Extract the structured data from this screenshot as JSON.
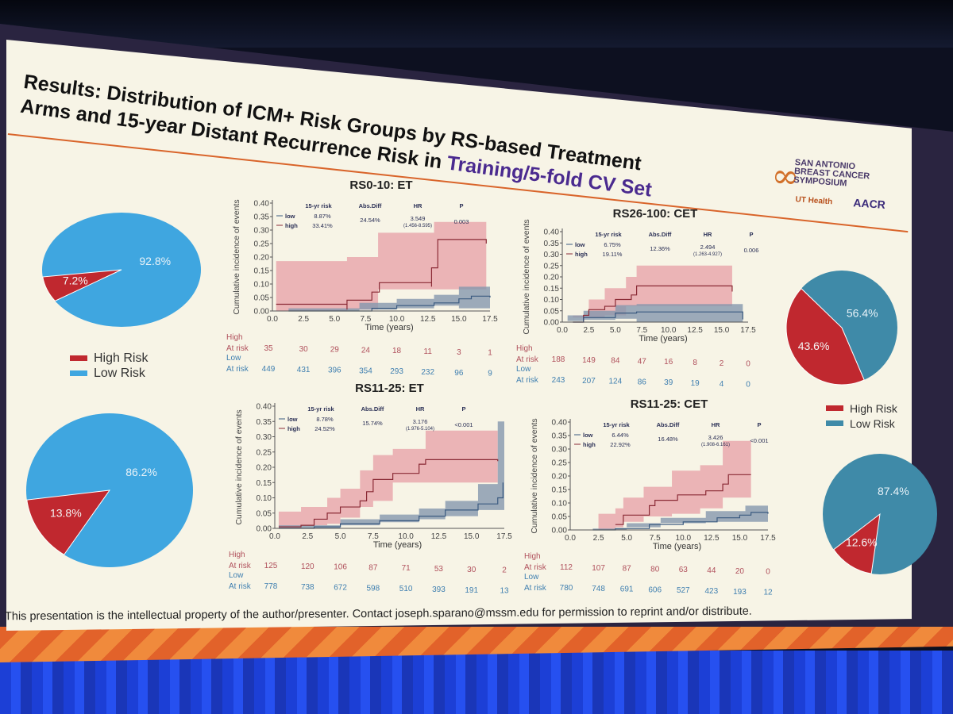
{
  "slide": {
    "title_line1": "Results: Distribution of ICM+ Risk Groups by RS-based Treatment",
    "title_line2_prefix": "Arms and 15-year Distant Recurrence Risk in ",
    "title_line2_highlight": "Training/5-fold CV Set",
    "logo": {
      "name": "SAN ANTONIO BREAST CANCER SYMPOSIUM",
      "partner1": "UT Health",
      "partner2": "AACR"
    },
    "footer": "This presentation is the intellectual property of the author/presenter. Contact joseph.sparano@mssm.edu for permission to reprint and/or distribute."
  },
  "colors": {
    "high": "#c0282f",
    "low_left": "#3fa6e0",
    "low_right": "#3f8aa8",
    "band_high": "#e9a8ad",
    "band_low": "#8597ae",
    "line_high": "#8a2a35",
    "line_low": "#3a5a80",
    "title_highlight": "#4a2a8f",
    "accent": "#d9642a"
  },
  "legends": [
    {
      "items": [
        {
          "label": "High Risk",
          "color": "#c0282f"
        },
        {
          "label": "Low Risk",
          "color": "#3fa6e0"
        }
      ]
    },
    {
      "items": [
        {
          "label": "High Risk",
          "color": "#c0282f"
        },
        {
          "label": "Low Risk",
          "color": "#3f8aa8"
        }
      ]
    }
  ],
  "chart_data": [
    {
      "type": "pie",
      "slices": [
        {
          "label": "Low Risk",
          "value": 92.8,
          "text": "92.8%"
        },
        {
          "label": "High Risk",
          "value": 7.2,
          "text": "7.2%"
        }
      ]
    },
    {
      "type": "pie",
      "slices": [
        {
          "label": "Low Risk",
          "value": 86.2,
          "text": "86.2%"
        },
        {
          "label": "High Risk",
          "value": 13.8,
          "text": "13.8%"
        }
      ]
    },
    {
      "type": "pie",
      "slices": [
        {
          "label": "Low Risk",
          "value": 56.4,
          "text": "56.4%"
        },
        {
          "label": "High Risk",
          "value": 43.6,
          "text": "43.6%"
        }
      ]
    },
    {
      "type": "pie",
      "slices": [
        {
          "label": "Low Risk",
          "value": 87.4,
          "text": "87.4%"
        },
        {
          "label": "High Risk",
          "value": 12.6,
          "text": "12.6%"
        }
      ]
    },
    {
      "type": "line",
      "title": "RS0-10: ET",
      "xlabel": "Time (years)",
      "ylabel": "Cumulative incidence of events",
      "xlim": [
        0,
        17.5
      ],
      "ylim": [
        0,
        0.4
      ],
      "xticks": [
        "0.0",
        "2.5",
        "5.0",
        "7.5",
        "10.0",
        "12.5",
        "15.0",
        "17.5"
      ],
      "yticks": [
        "0.00",
        "0.05",
        "0.10",
        "0.15",
        "0.20",
        "0.25",
        "0.30",
        "0.35",
        "0.40"
      ],
      "stats": {
        "headers": [
          "15-yr risk",
          "Abs.Diff",
          "HR",
          "P"
        ],
        "low_label": "low",
        "high_label": "high",
        "low_risk": "8.87%",
        "high_risk": "33.41%",
        "abs_diff": "24.54%",
        "hr": "3.549",
        "ci": "(1.456-8.595)",
        "p": "0.003"
      },
      "series": [
        {
          "name": "high",
          "points": [
            [
              0.3,
              0.025
            ],
            [
              6,
              0.005
            ],
            [
              6,
              0.04
            ],
            [
              8,
              0.04
            ],
            [
              8,
              0.07
            ],
            [
              8.6,
              0.07
            ],
            [
              8.6,
              0.105
            ],
            [
              12.8,
              0.09
            ],
            [
              12.8,
              0.16
            ],
            [
              13.3,
              0.16
            ],
            [
              13.3,
              0.265
            ],
            [
              17.2,
              0.25
            ]
          ],
          "band": [
            [
              0.3,
              0,
              0.185
            ],
            [
              6,
              0,
              0.2
            ],
            [
              8.5,
              0.005,
              0.29
            ],
            [
              13,
              0.08,
              0.33
            ],
            [
              17.2,
              0.08,
              0.31
            ]
          ]
        },
        {
          "name": "low",
          "points": [
            [
              1.3,
              0
            ],
            [
              6,
              0
            ],
            [
              8,
              0.01
            ],
            [
              10,
              0.02
            ],
            [
              13,
              0.03
            ],
            [
              15,
              0.045
            ],
            [
              16,
              0.055
            ],
            [
              17.5,
              0.05
            ]
          ],
          "band": [
            [
              1.3,
              0,
              0.01
            ],
            [
              7,
              0,
              0.03
            ],
            [
              10,
              0.005,
              0.045
            ],
            [
              13,
              0.01,
              0.06
            ],
            [
              15,
              0.02,
              0.09
            ],
            [
              17.5,
              0.01,
              0.11
            ]
          ]
        }
      ],
      "at_risk": {
        "high_label": "High",
        "low_label": "Low",
        "row_label": "At risk",
        "high": [
          "35",
          "30",
          "29",
          "24",
          "18",
          "11",
          "3",
          "1"
        ],
        "low": [
          "449",
          "431",
          "396",
          "354",
          "293",
          "232",
          "96",
          "9"
        ]
      }
    },
    {
      "type": "line",
      "title": "RS26-100: CET",
      "xlabel": "Time (years)",
      "ylabel": "Cumulative incidence of events",
      "xlim": [
        0,
        17.5
      ],
      "ylim": [
        0,
        0.4
      ],
      "xticks": [
        "0.0",
        "2.5",
        "5.0",
        "7.5",
        "10.0",
        "12.5",
        "15.0",
        "17.5"
      ],
      "yticks": [
        "0.00",
        "0.05",
        "0.10",
        "0.15",
        "0.20",
        "0.25",
        "0.30",
        "0.35",
        "0.40"
      ],
      "stats": {
        "headers": [
          "15-yr risk",
          "Abs.Diff",
          "HR",
          "P"
        ],
        "low_label": "low",
        "high_label": "high",
        "low_risk": "6.75%",
        "high_risk": "19.11%",
        "abs_diff": "12.36%",
        "hr": "2.494",
        "ci": "(1.263-4.927)",
        "p": "0.006"
      },
      "series": [
        {
          "name": "high",
          "points": [
            [
              1,
              0
            ],
            [
              2,
              0.03
            ],
            [
              2.5,
              0.055
            ],
            [
              4,
              0.07
            ],
            [
              5,
              0.1
            ],
            [
              6.5,
              0.12
            ],
            [
              7,
              0.16
            ],
            [
              16,
              0.135
            ]
          ],
          "band": [
            [
              1,
              0,
              0.03
            ],
            [
              2.5,
              0.02,
              0.1
            ],
            [
              4,
              0.02,
              0.15
            ],
            [
              6,
              0.03,
              0.2
            ],
            [
              7,
              0.07,
              0.25
            ],
            [
              16,
              0.07,
              0.22
            ]
          ]
        },
        {
          "name": "low",
          "points": [
            [
              1,
              0
            ],
            [
              2,
              0.02
            ],
            [
              5,
              0.04
            ],
            [
              7,
              0.045
            ],
            [
              17,
              0.012
            ]
          ],
          "band": [
            [
              0.5,
              0,
              0.03
            ],
            [
              2,
              0.005,
              0.05
            ],
            [
              5,
              0.01,
              0.075
            ],
            [
              7,
              0.015,
              0.08
            ],
            [
              17,
              0,
              0.065
            ]
          ]
        }
      ],
      "at_risk": {
        "high_label": "High",
        "low_label": "Low",
        "row_label": "At risk",
        "high": [
          "188",
          "149",
          "84",
          "47",
          "16",
          "8",
          "2",
          "0"
        ],
        "low": [
          "243",
          "207",
          "124",
          "86",
          "39",
          "19",
          "4",
          "0"
        ]
      }
    },
    {
      "type": "line",
      "title": "RS11-25: ET",
      "xlabel": "Time (years)",
      "ylabel": "Cumulative incidence of events",
      "xlim": [
        0,
        17.5
      ],
      "ylim": [
        0,
        0.4
      ],
      "xticks": [
        "0.0",
        "2.5",
        "5.0",
        "7.5",
        "10.0",
        "12.5",
        "15.0",
        "17.5"
      ],
      "yticks": [
        "0.00",
        "0.05",
        "0.10",
        "0.15",
        "0.20",
        "0.25",
        "0.30",
        "0.35",
        "0.40"
      ],
      "stats": {
        "headers": [
          "15-yr risk",
          "Abs.Diff",
          "HR",
          "P"
        ],
        "low_label": "low",
        "high_label": "high",
        "low_risk": "8.78%",
        "high_risk": "24.52%",
        "abs_diff": "15.74%",
        "hr": "3.176",
        "ci": "(1.976-5.104)",
        "p": "<0.001"
      },
      "series": [
        {
          "name": "high",
          "points": [
            [
              0.3,
              0.005
            ],
            [
              2,
              0.01
            ],
            [
              3,
              0.03
            ],
            [
              4,
              0.05
            ],
            [
              5,
              0.07
            ],
            [
              6.5,
              0.09
            ],
            [
              7,
              0.12
            ],
            [
              7.5,
              0.16
            ],
            [
              9,
              0.18
            ],
            [
              11,
              0.21
            ],
            [
              11.5,
              0.225
            ],
            [
              17,
              0.22
            ]
          ],
          "band": [
            [
              0.3,
              0,
              0.055
            ],
            [
              2,
              0,
              0.07
            ],
            [
              4,
              0.01,
              0.1
            ],
            [
              5,
              0.015,
              0.13
            ],
            [
              6.5,
              0.035,
              0.19
            ],
            [
              7.5,
              0.07,
              0.24
            ],
            [
              9,
              0.09,
              0.26
            ],
            [
              11.5,
              0.15,
              0.32
            ],
            [
              17,
              0.15,
              0.31
            ]
          ]
        },
        {
          "name": "low",
          "points": [
            [
              0.3,
              0
            ],
            [
              3,
              0.005
            ],
            [
              5,
              0.015
            ],
            [
              8,
              0.025
            ],
            [
              11,
              0.04
            ],
            [
              13,
              0.06
            ],
            [
              15.5,
              0.08
            ],
            [
              17,
              0.1
            ],
            [
              17.4,
              0.15
            ]
          ],
          "band": [
            [
              0.3,
              0,
              0.01
            ],
            [
              5,
              0,
              0.03
            ],
            [
              8,
              0.01,
              0.045
            ],
            [
              11,
              0.02,
              0.065
            ],
            [
              13,
              0.03,
              0.09
            ],
            [
              15.5,
              0.04,
              0.145
            ],
            [
              17,
              0.06,
              0.35
            ],
            [
              17.5,
              0.06,
              0.35
            ]
          ]
        }
      ],
      "at_risk": {
        "high_label": "High",
        "low_label": "Low",
        "row_label": "At risk",
        "high": [
          "125",
          "120",
          "106",
          "87",
          "71",
          "53",
          "30",
          "2"
        ],
        "low": [
          "778",
          "738",
          "672",
          "598",
          "510",
          "393",
          "191",
          "13"
        ]
      }
    },
    {
      "type": "line",
      "title": "RS11-25: CET",
      "xlabel": "Time (years)",
      "ylabel": "Cumulative incidence of events",
      "xlim": [
        0,
        17.5
      ],
      "ylim": [
        0,
        0.4
      ],
      "xticks": [
        "0.0",
        "2.5",
        "5.0",
        "7.5",
        "10.0",
        "12.5",
        "15.0",
        "17.5"
      ],
      "yticks": [
        "0.00",
        "0.05",
        "0.10",
        "0.15",
        "0.20",
        "0.25",
        "0.30",
        "0.35",
        "0.40"
      ],
      "stats": {
        "headers": [
          "15-yr risk",
          "Abs.Diff",
          "HR",
          "P"
        ],
        "low_label": "low",
        "high_label": "high",
        "low_risk": "6.44%",
        "high_risk": "22.92%",
        "abs_diff": "16.48%",
        "hr": "3.426",
        "ci": "(1.908-6.161)",
        "p": "<0.001"
      },
      "series": [
        {
          "name": "high",
          "points": [
            [
              4,
              0.02
            ],
            [
              4.7,
              0.055
            ],
            [
              7,
              0.09
            ],
            [
              7.5,
              0.11
            ],
            [
              9.5,
              0.13
            ],
            [
              12,
              0.145
            ],
            [
              13.5,
              0.17
            ],
            [
              14,
              0.205
            ],
            [
              16,
              0.205
            ]
          ],
          "band": [
            [
              2.5,
              0,
              0.06
            ],
            [
              4,
              0,
              0.08
            ],
            [
              4.7,
              0.01,
              0.12
            ],
            [
              6.5,
              0.03,
              0.16
            ],
            [
              9,
              0.05,
              0.22
            ],
            [
              11.5,
              0.06,
              0.24
            ],
            [
              13.5,
              0.08,
              0.33
            ],
            [
              16,
              0.12,
              0.33
            ]
          ]
        },
        {
          "name": "low",
          "points": [
            [
              2,
              0
            ],
            [
              4,
              0.005
            ],
            [
              7,
              0.02
            ],
            [
              10,
              0.03
            ],
            [
              13,
              0.045
            ],
            [
              15,
              0.055
            ],
            [
              16,
              0.065
            ],
            [
              17.5,
              0.06
            ]
          ],
          "band": [
            [
              2,
              0,
              0.005
            ],
            [
              5,
              0,
              0.025
            ],
            [
              8,
              0.01,
              0.045
            ],
            [
              12,
              0.025,
              0.07
            ],
            [
              15.5,
              0.03,
              0.09
            ],
            [
              17.5,
              0.03,
              0.09
            ]
          ]
        }
      ],
      "at_risk": {
        "high_label": "High",
        "low_label": "Low",
        "row_label": "At risk",
        "high": [
          "112",
          "107",
          "87",
          "80",
          "63",
          "44",
          "20",
          "0"
        ],
        "low": [
          "780",
          "748",
          "691",
          "606",
          "527",
          "423",
          "193",
          "12"
        ]
      }
    }
  ]
}
